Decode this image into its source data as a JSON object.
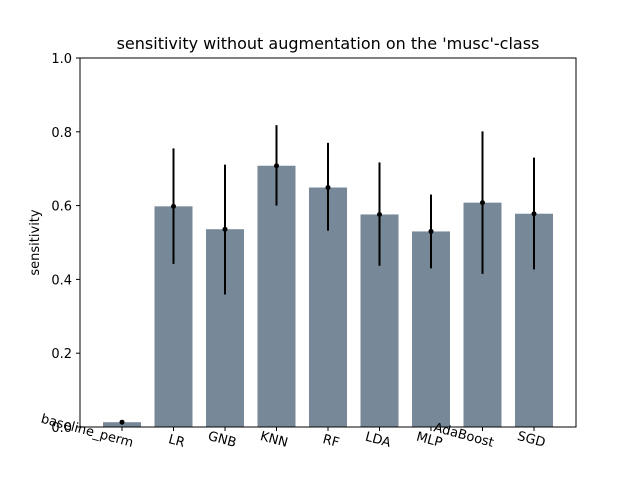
{
  "chart_data": {
    "type": "bar",
    "title": "sensitivity without augmentation on the 'musc'-class",
    "xlabel": "",
    "ylabel": "sensitivity",
    "ylim": [
      0,
      1.0
    ],
    "yticks": [
      0.0,
      0.2,
      0.4,
      0.6,
      0.8,
      1.0
    ],
    "ytick_labels": [
      "0.0",
      "0.2",
      "0.4",
      "0.6",
      "0.8",
      "1.0"
    ],
    "categories": [
      "baseline_perm",
      "LR",
      "GNB",
      "KNN",
      "RF",
      "LDA",
      "MLP",
      "AdaBoost",
      "SGD"
    ],
    "values": [
      0.013,
      0.598,
      0.536,
      0.708,
      0.649,
      0.576,
      0.53,
      0.608,
      0.578
    ],
    "error_low": [
      0.013,
      0.442,
      0.359,
      0.6,
      0.532,
      0.437,
      0.43,
      0.415,
      0.427
    ],
    "error_high": [
      0.013,
      0.755,
      0.711,
      0.818,
      0.77,
      0.717,
      0.63,
      0.801,
      0.73
    ],
    "bar_color": "#778899",
    "error_color": "#000000",
    "grid": false,
    "xtick_rotation_deg": 15
  }
}
